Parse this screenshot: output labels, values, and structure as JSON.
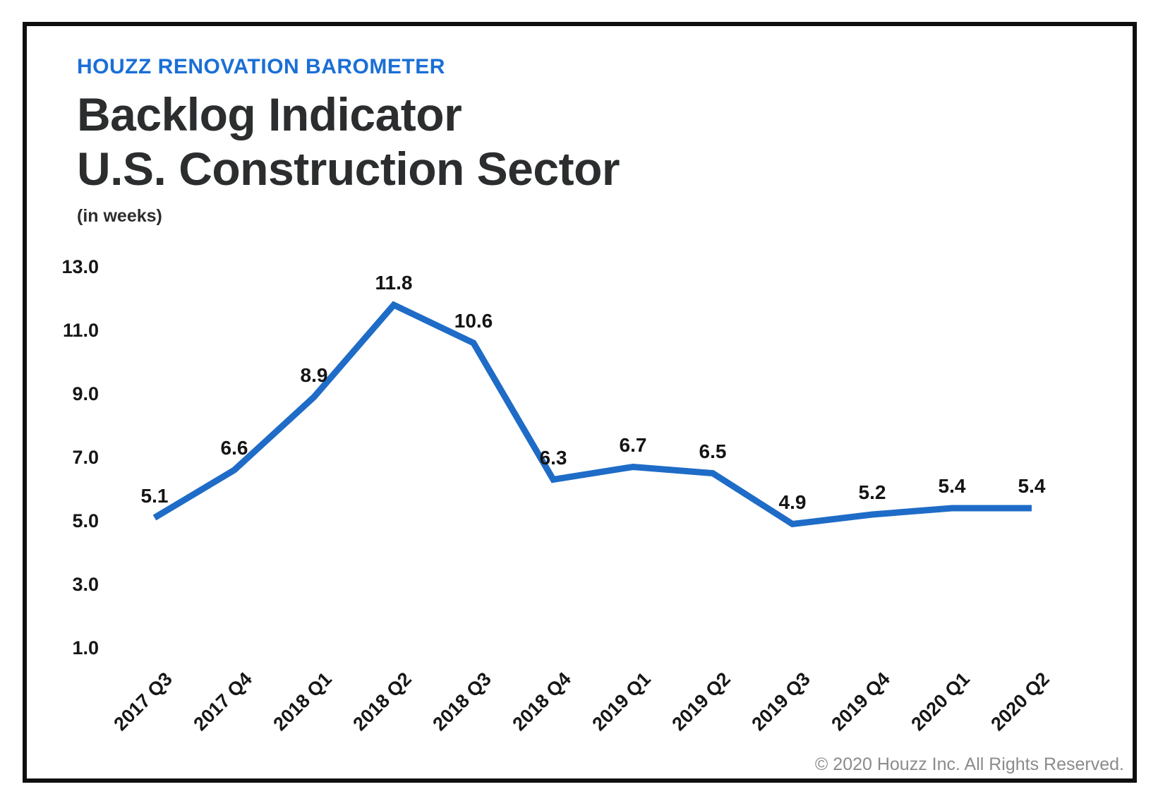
{
  "header": {
    "eyebrow": "HOUZZ RENOVATION BAROMETER",
    "title_line1": "Backlog Indicator",
    "title_line2": "U.S. Construction Sector",
    "subtitle": "(in weeks)"
  },
  "footer": {
    "copyright": "© 2020 Houzz Inc. All Rights Reserved."
  },
  "colors": {
    "eyebrow_blue": "#1a6fd6",
    "line_blue": "#1e6cc7",
    "title_dark": "#2b2d2e",
    "label_dark": "#161616",
    "copyright_gray": "#8b8b8b",
    "frame_black": "#0f0f0f"
  },
  "chart_data": {
    "type": "line",
    "title": "Backlog Indicator — U.S. Construction Sector",
    "unit_note": "(in weeks)",
    "categories": [
      "2017 Q3",
      "2017 Q4",
      "2018 Q1",
      "2018 Q2",
      "2018 Q3",
      "2018 Q4",
      "2019 Q1",
      "2019 Q2",
      "2019 Q3",
      "2019 Q4",
      "2020 Q1",
      "2020 Q2"
    ],
    "values": [
      5.1,
      6.6,
      8.9,
      11.8,
      10.6,
      6.3,
      6.7,
      6.5,
      4.9,
      5.2,
      5.4,
      5.4
    ],
    "data_labels": [
      "5.1",
      "6.6",
      "8.9",
      "11.8",
      "10.6",
      "6.3",
      "6.7",
      "6.5",
      "4.9",
      "5.2",
      "5.4",
      "5.4"
    ],
    "y_ticks": [
      "13.0",
      "11.0",
      "9.0",
      "7.0",
      "5.0",
      "3.0",
      "1.0"
    ],
    "ylim": [
      1,
      13
    ],
    "grid": false,
    "legend": "none",
    "axis_lines": false,
    "line_color": "#1e6cc7"
  }
}
